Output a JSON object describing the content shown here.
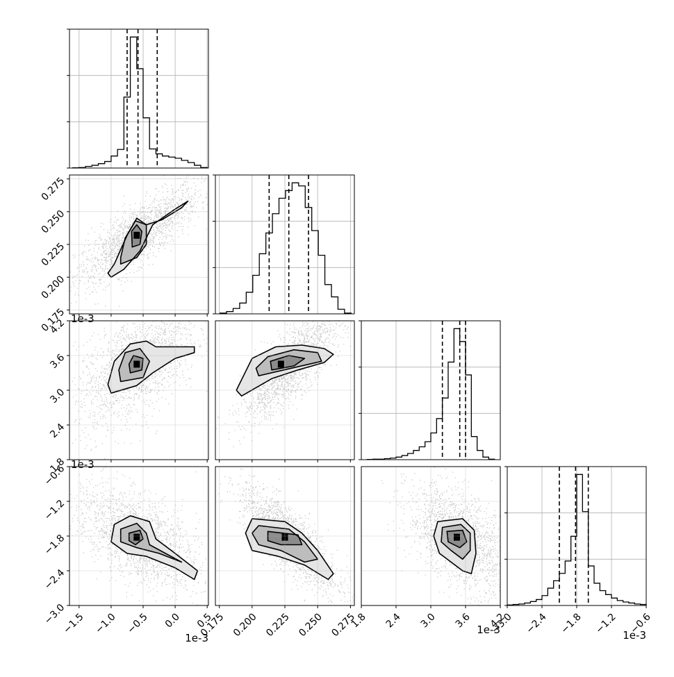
{
  "chart_data": {
    "type": "corner",
    "dimensions": 4,
    "histograms": [
      {
        "variable": 0,
        "bins": [
          -1.55,
          -1.45,
          -1.35,
          -1.25,
          -1.15,
          -1.05,
          -0.95,
          -0.85,
          -0.75,
          -0.65,
          -0.55,
          -0.45,
          -0.35,
          -0.25,
          -0.15,
          -0.05,
          0.05,
          0.15,
          0.25,
          0.35,
          0.45
        ],
        "counts": [
          0.5,
          1,
          3,
          5,
          8,
          12,
          22,
          34,
          130,
          240,
          182,
          92,
          35,
          26,
          22,
          20,
          18,
          14,
          10,
          5,
          1
        ],
        "quantiles": [
          -0.75,
          -0.58,
          -0.28
        ]
      },
      {
        "variable": 1,
        "bins": [
          0.178,
          0.183,
          0.188,
          0.193,
          0.198,
          0.203,
          0.208,
          0.213,
          0.218,
          0.223,
          0.228,
          0.233,
          0.238,
          0.243,
          0.248,
          0.253,
          0.258,
          0.263,
          0.268,
          0.273
        ],
        "counts": [
          1,
          3,
          7,
          14,
          28,
          50,
          78,
          105,
          130,
          150,
          160,
          170,
          166,
          138,
          108,
          76,
          38,
          22,
          6,
          1
        ],
        "quantiles": [
          0.213,
          0.228,
          0.243
        ]
      },
      {
        "variable": 2,
        "bins": [
          1.95,
          2.05,
          2.15,
          2.25,
          2.35,
          2.45,
          2.55,
          2.65,
          2.75,
          2.85,
          2.95,
          3.05,
          3.15,
          3.25,
          3.35,
          3.45,
          3.55,
          3.65,
          3.75,
          3.85,
          3.95,
          4.05
        ],
        "counts": [
          0.5,
          1,
          1,
          2,
          3,
          5,
          8,
          12,
          18,
          25,
          35,
          52,
          80,
          120,
          190,
          255,
          230,
          165,
          45,
          18,
          5,
          1
        ],
        "quantiles": [
          3.2,
          3.5,
          3.6
        ]
      },
      {
        "variable": 3,
        "bins": [
          -2.95,
          -2.85,
          -2.75,
          -2.65,
          -2.55,
          -2.45,
          -2.35,
          -2.25,
          -2.15,
          -2.05,
          -1.95,
          -1.85,
          -1.75,
          -1.65,
          -1.55,
          -1.45,
          -1.35,
          -1.25,
          -1.15,
          -1.05,
          -0.95,
          -0.85,
          -0.75,
          -0.65
        ],
        "counts": [
          1,
          2,
          3,
          5,
          8,
          12,
          20,
          35,
          50,
          65,
          90,
          140,
          265,
          190,
          80,
          45,
          30,
          22,
          15,
          10,
          7,
          5,
          3,
          2
        ],
        "quantiles": [
          -2.1,
          -1.82,
          -1.6
        ]
      }
    ],
    "pairs": [
      {
        "x": 0,
        "y": 1,
        "center": [
          -0.6,
          0.232
        ],
        "spread": [
          0.32,
          0.0125
        ],
        "correlation": 0.8,
        "density_peak": [
          -0.6,
          0.232
        ],
        "contour_levels": [
          [
            [
              -1.0,
              0.2
            ],
            [
              -0.8,
              0.206
            ],
            [
              -0.55,
              0.22
            ],
            [
              -0.35,
              0.24
            ],
            [
              0.0,
              0.252
            ],
            [
              0.2,
              0.258
            ],
            [
              0.1,
              0.253
            ],
            [
              -0.2,
              0.244
            ],
            [
              -0.45,
              0.24
            ],
            [
              -0.6,
              0.245
            ],
            [
              -0.75,
              0.232
            ],
            [
              -0.95,
              0.21
            ],
            [
              -1.05,
              0.203
            ]
          ],
          [
            [
              -0.85,
              0.21
            ],
            [
              -0.6,
              0.215
            ],
            [
              -0.45,
              0.225
            ],
            [
              -0.45,
              0.24
            ],
            [
              -0.62,
              0.243
            ],
            [
              -0.78,
              0.23
            ],
            [
              -0.85,
              0.215
            ]
          ],
          [
            [
              -0.67,
              0.223
            ],
            [
              -0.55,
              0.225
            ],
            [
              -0.52,
              0.235
            ],
            [
              -0.6,
              0.24
            ],
            [
              -0.68,
              0.235
            ]
          ]
        ]
      },
      {
        "x": 0,
        "y": 2,
        "center": [
          -0.6,
          3.45
        ],
        "spread": [
          0.32,
          0.35
        ],
        "correlation": 0.55,
        "density_peak": [
          -0.6,
          3.45
        ],
        "contour_levels": [
          [
            [
              -1.0,
              2.95
            ],
            [
              -0.6,
              3.08
            ],
            [
              -0.35,
              3.3
            ],
            [
              0.0,
              3.55
            ],
            [
              0.3,
              3.65
            ],
            [
              0.3,
              3.75
            ],
            [
              -0.3,
              3.75
            ],
            [
              -0.45,
              3.85
            ],
            [
              -0.7,
              3.8
            ],
            [
              -0.95,
              3.5
            ],
            [
              -1.05,
              3.1
            ]
          ],
          [
            [
              -0.85,
              3.15
            ],
            [
              -0.5,
              3.22
            ],
            [
              -0.4,
              3.5
            ],
            [
              -0.55,
              3.72
            ],
            [
              -0.78,
              3.65
            ],
            [
              -0.88,
              3.35
            ]
          ],
          [
            [
              -0.7,
              3.3
            ],
            [
              -0.52,
              3.35
            ],
            [
              -0.5,
              3.55
            ],
            [
              -0.65,
              3.6
            ],
            [
              -0.72,
              3.45
            ]
          ]
        ]
      },
      {
        "x": 1,
        "y": 2,
        "center": [
          0.23,
          3.45
        ],
        "spread": [
          0.0125,
          0.32
        ],
        "correlation": 0.8,
        "density_peak": [
          0.222,
          3.45
        ],
        "contour_levels": [
          [
            [
              0.192,
              2.9
            ],
            [
              0.215,
              3.2
            ],
            [
              0.235,
              3.35
            ],
            [
              0.255,
              3.48
            ],
            [
              0.262,
              3.62
            ],
            [
              0.255,
              3.72
            ],
            [
              0.238,
              3.78
            ],
            [
              0.218,
              3.75
            ],
            [
              0.2,
              3.55
            ],
            [
              0.188,
              3.0
            ]
          ],
          [
            [
              0.205,
              3.25
            ],
            [
              0.23,
              3.38
            ],
            [
              0.253,
              3.5
            ],
            [
              0.25,
              3.65
            ],
            [
              0.232,
              3.7
            ],
            [
              0.212,
              3.58
            ],
            [
              0.203,
              3.38
            ]
          ],
          [
            [
              0.215,
              3.35
            ],
            [
              0.232,
              3.42
            ],
            [
              0.24,
              3.55
            ],
            [
              0.228,
              3.6
            ],
            [
              0.214,
              3.5
            ]
          ]
        ]
      },
      {
        "x": 0,
        "y": 3,
        "center": [
          -0.6,
          -1.82
        ],
        "spread": [
          0.32,
          0.3
        ],
        "correlation": -0.55,
        "density_peak": [
          -0.6,
          -1.82
        ],
        "contour_levels": [
          [
            [
              -0.95,
              -1.6
            ],
            [
              -0.7,
              -1.45
            ],
            [
              -0.4,
              -1.55
            ],
            [
              -0.3,
              -1.85
            ],
            [
              0.0,
              -2.1
            ],
            [
              0.35,
              -2.4
            ],
            [
              0.3,
              -2.55
            ],
            [
              0.0,
              -2.35
            ],
            [
              -0.45,
              -2.15
            ],
            [
              -0.75,
              -2.1
            ],
            [
              -1.0,
              -1.9
            ]
          ],
          [
            [
              -0.85,
              -1.68
            ],
            [
              -0.6,
              -1.58
            ],
            [
              -0.45,
              -1.75
            ],
            [
              -0.4,
              -1.95
            ],
            [
              -0.15,
              -2.1
            ],
            [
              0.1,
              -2.25
            ],
            [
              -0.25,
              -2.1
            ],
            [
              -0.6,
              -2.0
            ],
            [
              -0.85,
              -1.9
            ]
          ],
          [
            [
              -0.72,
              -1.75
            ],
            [
              -0.55,
              -1.7
            ],
            [
              -0.5,
              -1.85
            ],
            [
              -0.62,
              -1.95
            ],
            [
              -0.72,
              -1.88
            ]
          ]
        ]
      },
      {
        "x": 1,
        "y": 3,
        "center": [
          0.228,
          -1.85
        ],
        "spread": [
          0.0125,
          0.3
        ],
        "correlation": -0.8,
        "density_peak": [
          0.225,
          -1.82
        ],
        "contour_levels": [
          [
            [
              0.2,
              -1.5
            ],
            [
              0.225,
              -1.55
            ],
            [
              0.238,
              -1.75
            ],
            [
              0.25,
              -2.05
            ],
            [
              0.262,
              -2.45
            ],
            [
              0.258,
              -2.55
            ],
            [
              0.24,
              -2.3
            ],
            [
              0.22,
              -2.15
            ],
            [
              0.2,
              -2.05
            ],
            [
              0.195,
              -1.75
            ]
          ],
          [
            [
              0.205,
              -1.62
            ],
            [
              0.228,
              -1.68
            ],
            [
              0.24,
              -1.9
            ],
            [
              0.25,
              -2.2
            ],
            [
              0.24,
              -2.25
            ],
            [
              0.222,
              -2.05
            ],
            [
              0.205,
              -1.95
            ],
            [
              0.2,
              -1.75
            ]
          ],
          [
            [
              0.212,
              -1.72
            ],
            [
              0.235,
              -1.78
            ],
            [
              0.238,
              -1.95
            ],
            [
              0.222,
              -1.95
            ],
            [
              0.212,
              -1.88
            ]
          ]
        ]
      },
      {
        "x": 2,
        "y": 3,
        "center": [
          3.5,
          -1.85
        ],
        "spread": [
          0.3,
          0.3
        ],
        "correlation": -0.5,
        "density_peak": [
          3.45,
          -1.82
        ],
        "contour_levels": [
          [
            [
              3.12,
              -1.55
            ],
            [
              3.55,
              -1.5
            ],
            [
              3.75,
              -1.7
            ],
            [
              3.78,
              -2.1
            ],
            [
              3.7,
              -2.45
            ],
            [
              3.55,
              -2.4
            ],
            [
              3.35,
              -2.25
            ],
            [
              3.15,
              -2.1
            ],
            [
              3.05,
              -1.8
            ]
          ],
          [
            [
              3.2,
              -1.65
            ],
            [
              3.52,
              -1.6
            ],
            [
              3.68,
              -1.75
            ],
            [
              3.68,
              -2.05
            ],
            [
              3.55,
              -2.2
            ],
            [
              3.35,
              -2.05
            ],
            [
              3.18,
              -1.9
            ]
          ],
          [
            [
              3.28,
              -1.72
            ],
            [
              3.55,
              -1.7
            ],
            [
              3.62,
              -1.9
            ],
            [
              3.5,
              -2.0
            ],
            [
              3.3,
              -1.9
            ]
          ]
        ]
      }
    ],
    "ticks": [
      {
        "values": [
          -1.5,
          -1.0,
          -0.5,
          0.0,
          0.5
        ],
        "labels": [
          "−1.5",
          "−1.0",
          "−0.5",
          "0.0",
          "0.5"
        ],
        "range": [
          -1.65,
          0.52
        ]
      },
      {
        "values": [
          0.175,
          0.2,
          0.225,
          0.25,
          0.275
        ],
        "labels": [
          "0.175",
          "0.200",
          "0.225",
          "0.250",
          "0.275"
        ],
        "range": [
          0.172,
          0.278
        ]
      },
      {
        "values": [
          1.8,
          2.4,
          3.0,
          3.6,
          4.2
        ],
        "labels": [
          "1.8",
          "2.4",
          "3.0",
          "3.6",
          "4.2"
        ],
        "range": [
          1.8,
          4.2
        ]
      },
      {
        "values": [
          -3.0,
          -2.4,
          -1.8,
          -1.2,
          -0.6
        ],
        "labels": [
          "−3.0",
          "−2.4",
          "−1.8",
          "−1.2",
          "−0.6"
        ],
        "range": [
          -3.0,
          -0.6
        ]
      }
    ],
    "offset_text": "1e-3",
    "grid": true
  }
}
